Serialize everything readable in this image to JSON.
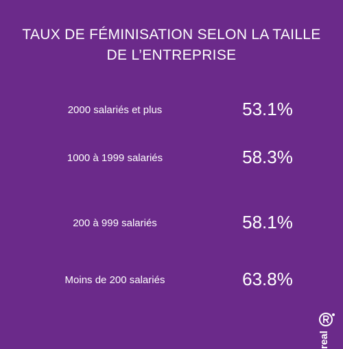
{
  "chart_data": {
    "type": "table",
    "title": "TAUX DE FÉMINISATION SELON LA TAILLE DE L’ENTREPRISE",
    "categories": [
      "2000 salariés et plus",
      "1000 à 1999 salariés",
      "200 à 999 salariés",
      "Moins de 200 salariés"
    ],
    "values": [
      53.1,
      58.3,
      58.1,
      63.8
    ],
    "value_labels": [
      "53.1%",
      "58.3%",
      "58.1%",
      "63.8%"
    ],
    "unit": "%"
  },
  "brand": {
    "logo_text": "real",
    "logo_icon": "registered-r-logo-icon"
  },
  "colors": {
    "background": "#6b2a8a",
    "text": "#ffffff"
  }
}
